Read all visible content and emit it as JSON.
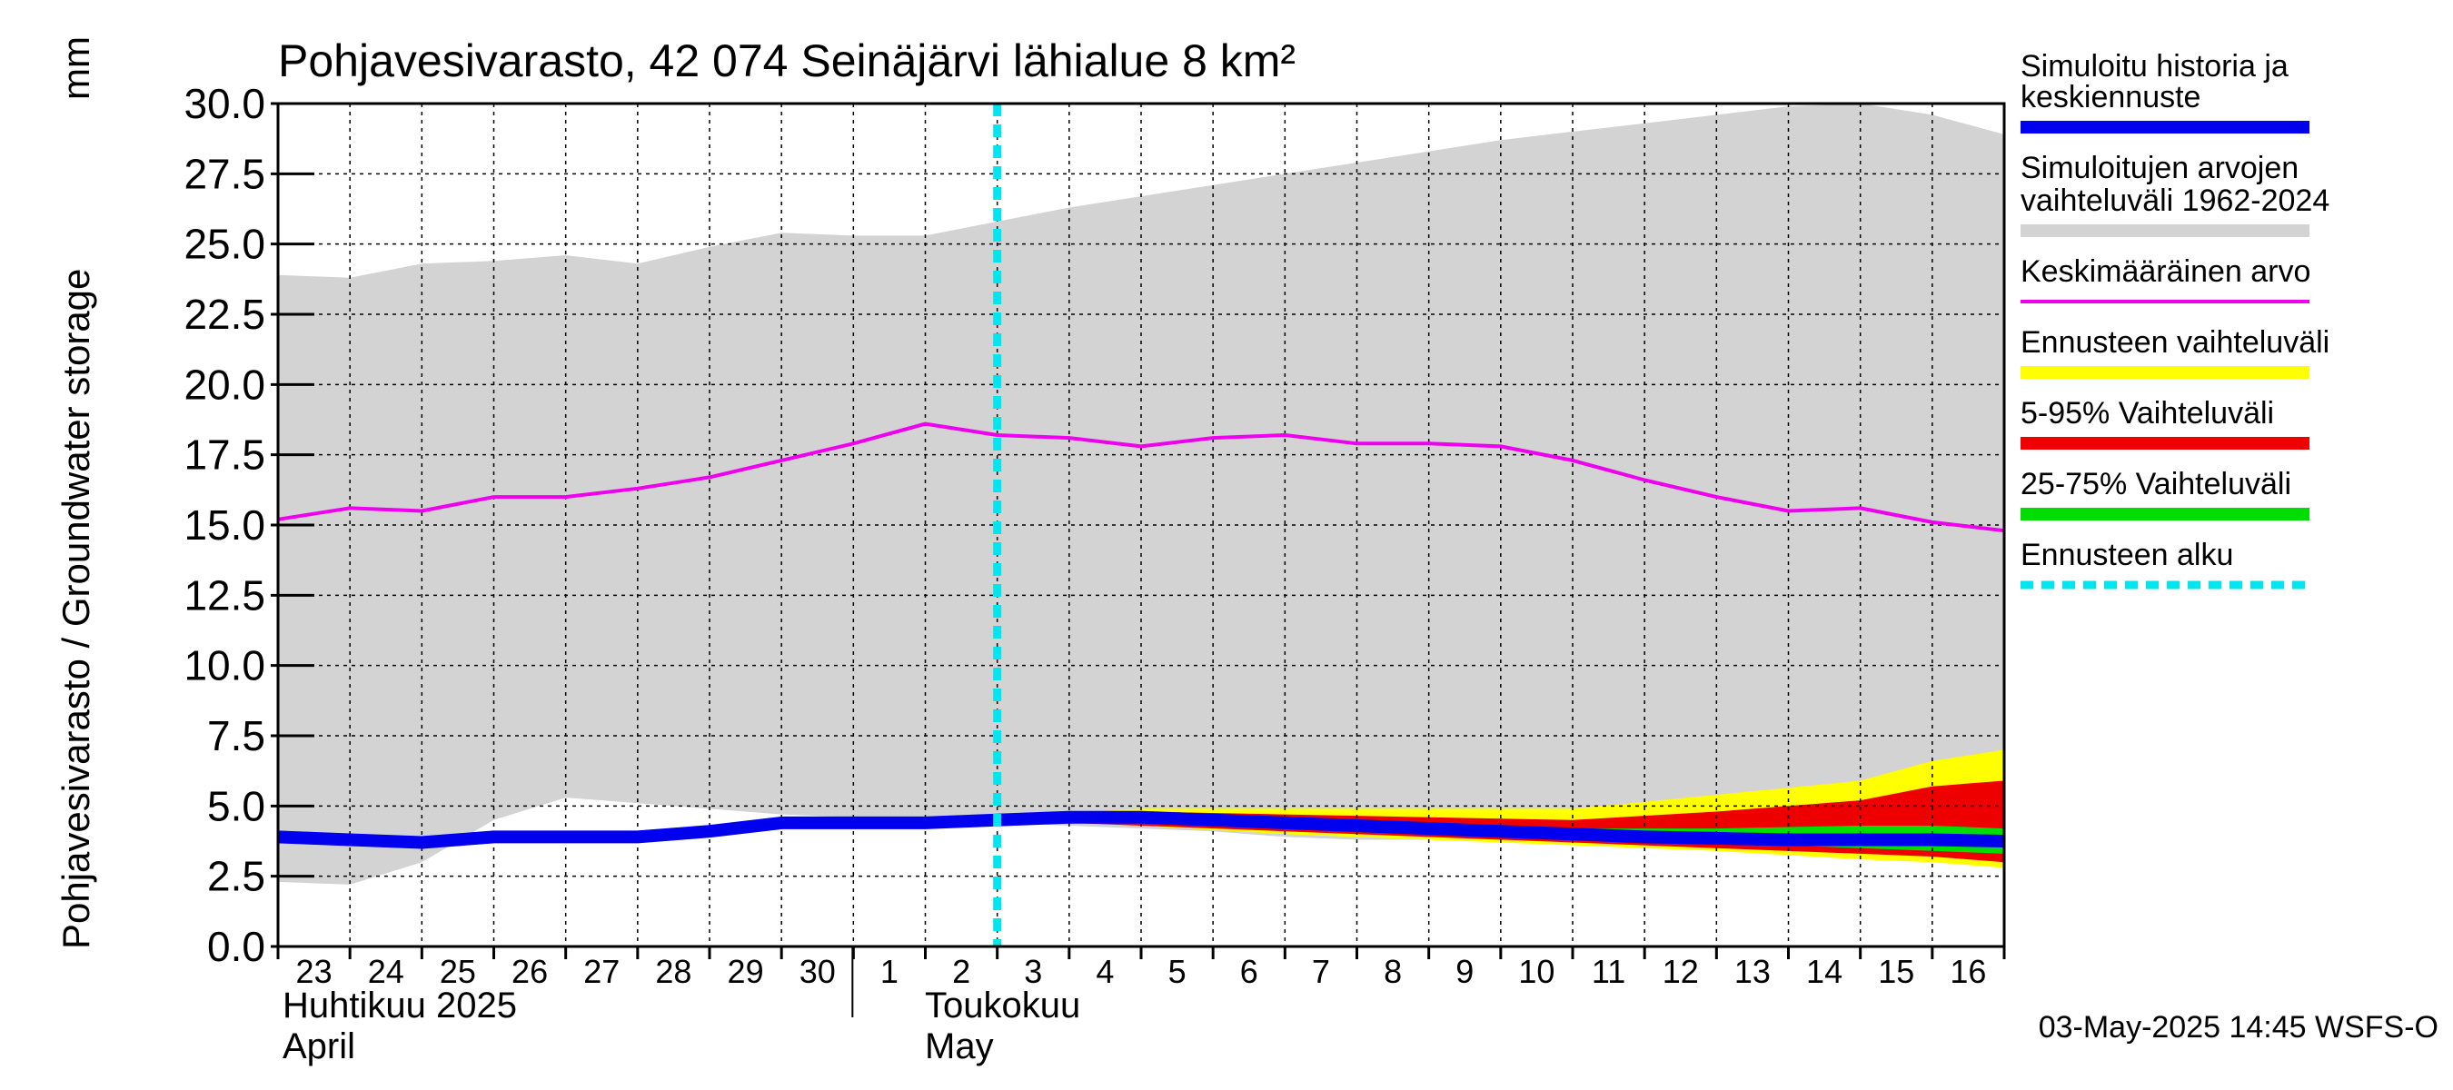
{
  "chart_data": {
    "type": "area",
    "title": "Pohjavesivarasto, 42 074 Seinäjärvi lähialue 8 km²",
    "ylabel": "Pohjavesivarasto / Groundwater storage",
    "yunit": "mm",
    "ylim": [
      0,
      30
    ],
    "yticks": [
      "0.0",
      "2.5",
      "5.0",
      "7.5",
      "10.0",
      "12.5",
      "15.0",
      "17.5",
      "20.0",
      "22.5",
      "25.0",
      "27.5",
      "30.0"
    ],
    "xlim": [
      "2025-04-23",
      "2025-05-17"
    ],
    "xtick_labels": [
      "23",
      "24",
      "25",
      "26",
      "27",
      "28",
      "29",
      "30",
      "1",
      "2",
      "3",
      "4",
      "5",
      "6",
      "7",
      "8",
      "9",
      "10",
      "11",
      "12",
      "13",
      "14",
      "15",
      "16"
    ],
    "month_labels": [
      {
        "fi": "Huhtikuu  2025",
        "en": "April"
      },
      {
        "fi": "Toukokuu",
        "en": "May"
      }
    ],
    "forecast_start": "2025-05-03",
    "colors": {
      "history": "#0000ee",
      "range": "#d3d3d3",
      "mean": "#ee00ee",
      "forecast_range": "#ffff00",
      "p5_95": "#ee0000",
      "p25_75": "#00dd00",
      "forecast_start": "#00e5ee"
    },
    "series": [
      {
        "name": "Simuloitujen arvojen vaihteluväli 1962-2024",
        "kind": "band",
        "x": [
          "2025-04-23",
          "2025-04-24",
          "2025-04-25",
          "2025-04-26",
          "2025-04-27",
          "2025-04-28",
          "2025-04-29",
          "2025-04-30",
          "2025-05-01",
          "2025-05-02",
          "2025-05-03",
          "2025-05-04",
          "2025-05-05",
          "2025-05-06",
          "2025-05-07",
          "2025-05-08",
          "2025-05-09",
          "2025-05-10",
          "2025-05-11",
          "2025-05-12",
          "2025-05-13",
          "2025-05-14",
          "2025-05-15",
          "2025-05-16",
          "2025-05-17"
        ],
        "low": [
          2.3,
          2.2,
          3.0,
          4.5,
          5.3,
          5.1,
          4.9,
          4.7,
          4.6,
          4.5,
          4.4,
          4.3,
          4.2,
          4.1,
          3.9,
          3.8,
          3.8,
          3.8,
          3.9,
          4.5,
          4.6,
          4.7,
          4.6,
          4.5,
          4.3
        ],
        "high": [
          23.9,
          23.8,
          24.3,
          24.4,
          24.6,
          24.3,
          24.9,
          25.4,
          25.3,
          25.3,
          25.8,
          26.3,
          26.7,
          27.1,
          27.5,
          27.9,
          28.3,
          28.7,
          29.0,
          29.3,
          29.6,
          29.9,
          30.0,
          29.6,
          28.9
        ]
      },
      {
        "name": "Keskimääräinen arvo",
        "kind": "line",
        "x": [
          "2025-04-23",
          "2025-04-24",
          "2025-04-25",
          "2025-04-26",
          "2025-04-27",
          "2025-04-28",
          "2025-04-29",
          "2025-04-30",
          "2025-05-01",
          "2025-05-02",
          "2025-05-03",
          "2025-05-04",
          "2025-05-05",
          "2025-05-06",
          "2025-05-07",
          "2025-05-08",
          "2025-05-09",
          "2025-05-10",
          "2025-05-11",
          "2025-05-12",
          "2025-05-13",
          "2025-05-14",
          "2025-05-15",
          "2025-05-16",
          "2025-05-17"
        ],
        "values": [
          15.2,
          15.6,
          15.5,
          16.0,
          16.0,
          16.3,
          16.7,
          17.3,
          17.9,
          18.6,
          18.2,
          18.1,
          17.8,
          18.1,
          18.2,
          17.9,
          17.9,
          17.8,
          17.3,
          16.6,
          16.0,
          15.5,
          15.6,
          15.1,
          14.8
        ]
      },
      {
        "name": "Ennusteen vaihteluväli",
        "kind": "band",
        "x": [
          "2025-05-03",
          "2025-05-05",
          "2025-05-07",
          "2025-05-09",
          "2025-05-11",
          "2025-05-13",
          "2025-05-15",
          "2025-05-16",
          "2025-05-17"
        ],
        "low": [
          4.5,
          4.3,
          4.0,
          3.8,
          3.6,
          3.4,
          3.1,
          3.0,
          2.8
        ],
        "high": [
          4.6,
          4.9,
          4.9,
          4.9,
          4.9,
          5.4,
          5.9,
          6.6,
          7.0
        ]
      },
      {
        "name": "5-95% Vaihteluväli",
        "kind": "band",
        "x": [
          "2025-05-03",
          "2025-05-05",
          "2025-05-07",
          "2025-05-09",
          "2025-05-11",
          "2025-05-13",
          "2025-05-15",
          "2025-05-16",
          "2025-05-17"
        ],
        "low": [
          4.5,
          4.3,
          4.1,
          3.9,
          3.7,
          3.5,
          3.3,
          3.2,
          3.0
        ],
        "high": [
          4.6,
          4.8,
          4.7,
          4.6,
          4.5,
          4.8,
          5.2,
          5.7,
          5.9
        ]
      },
      {
        "name": "25-75% Vaihteluväli",
        "kind": "band",
        "x": [
          "2025-05-03",
          "2025-05-05",
          "2025-05-07",
          "2025-05-09",
          "2025-05-11",
          "2025-05-13",
          "2025-05-15",
          "2025-05-16",
          "2025-05-17"
        ],
        "low": [
          4.5,
          4.4,
          4.2,
          4.0,
          3.9,
          3.7,
          3.5,
          3.4,
          3.3
        ],
        "high": [
          4.6,
          4.6,
          4.5,
          4.3,
          4.2,
          4.2,
          4.3,
          4.3,
          4.2
        ]
      },
      {
        "name": "Simuloitu historia ja keskiennuste",
        "kind": "line",
        "x": [
          "2025-04-23",
          "2025-04-24",
          "2025-04-25",
          "2025-04-26",
          "2025-04-27",
          "2025-04-28",
          "2025-04-29",
          "2025-04-30",
          "2025-05-01",
          "2025-05-02",
          "2025-05-03",
          "2025-05-04",
          "2025-05-05",
          "2025-05-06",
          "2025-05-07",
          "2025-05-08",
          "2025-05-09",
          "2025-05-10",
          "2025-05-11",
          "2025-05-12",
          "2025-05-13",
          "2025-05-14",
          "2025-05-15",
          "2025-05-16",
          "2025-05-17"
        ],
        "values": [
          3.9,
          3.8,
          3.7,
          3.9,
          3.9,
          3.9,
          4.1,
          4.4,
          4.4,
          4.4,
          4.5,
          4.6,
          4.6,
          4.5,
          4.4,
          4.3,
          4.2,
          4.1,
          4.0,
          3.9,
          3.85,
          3.8,
          3.8,
          3.8,
          3.75
        ]
      },
      {
        "name": "Ennusteen alku",
        "kind": "vline",
        "x": "2025-05-03"
      }
    ],
    "legend_position": "right",
    "grid": true,
    "footer": "03-May-2025 14:45 WSFS-O"
  }
}
